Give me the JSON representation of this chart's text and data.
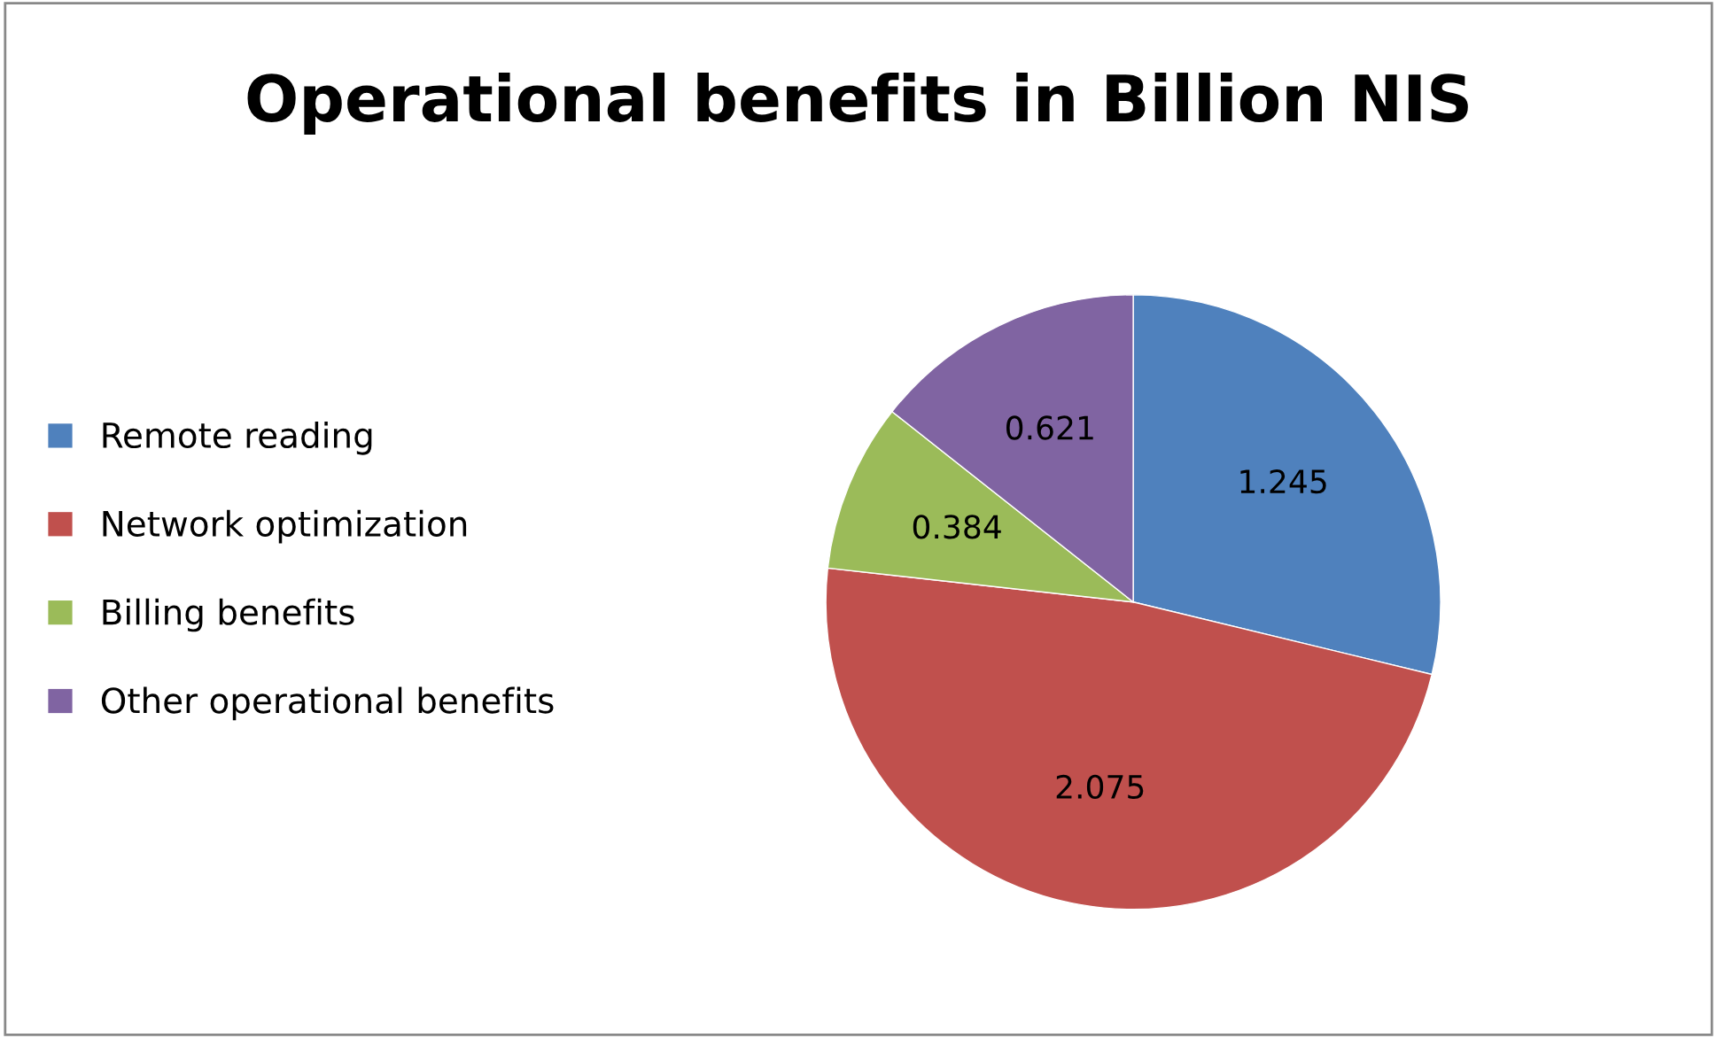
{
  "chart_data": {
    "type": "pie",
    "title": "Operational benefits in Billion NIS",
    "categories": [
      "Remote reading",
      "Network optimization",
      "Billing benefits",
      "Other operational benefits"
    ],
    "values": [
      1.245,
      2.075,
      0.384,
      0.621
    ],
    "colors": [
      "#4f81bd",
      "#c0504d",
      "#9bbb59",
      "#8064a2"
    ],
    "data_labels": true,
    "legend": "left"
  }
}
